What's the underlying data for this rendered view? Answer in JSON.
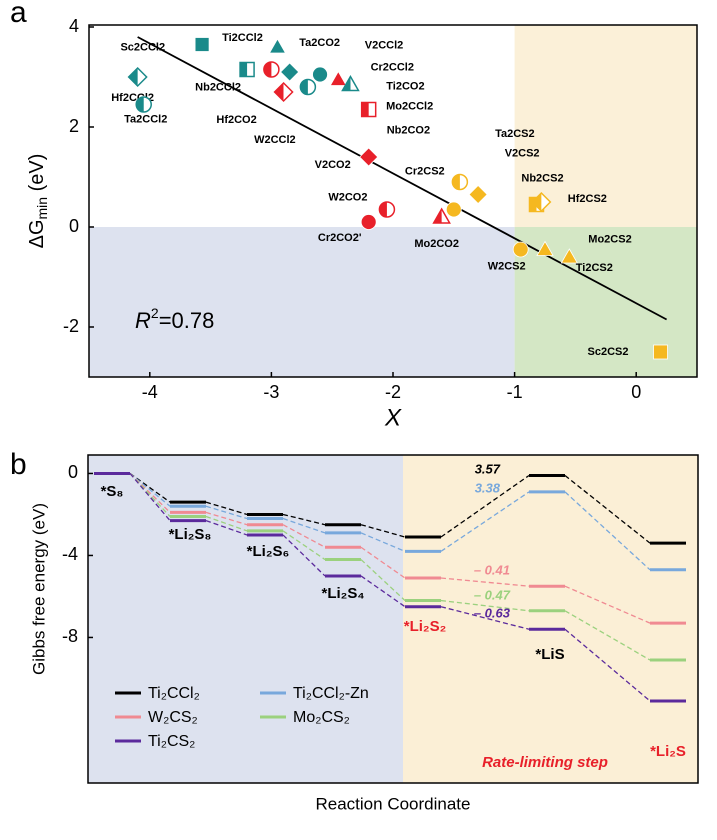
{
  "chart_data": [
    {
      "type": "scatter",
      "panel_label": "a",
      "xlabel": "X",
      "ylabel_parts": [
        "ΔG",
        "min",
        " (eV)"
      ],
      "xlim": [
        -4.5,
        0.5
      ],
      "ylim": [
        -3,
        4.04
      ],
      "xticks": [
        -4,
        -3,
        -2,
        -1,
        0
      ],
      "yticks": [
        -2,
        0,
        2,
        4
      ],
      "regions": [
        {
          "xlim": [
            -4.5,
            -1
          ],
          "ylim": [
            -3,
            0
          ],
          "color": "#dde2ef"
        },
        {
          "xlim": [
            -1,
            0.5
          ],
          "ylim": [
            -3,
            0
          ],
          "color": "#d4e7c5"
        },
        {
          "xlim": [
            -1,
            0.5
          ],
          "ylim": [
            0,
            4.04
          ],
          "color": "#fbf0d8"
        }
      ],
      "fit_line": {
        "x": [
          -4.1,
          0.25
        ],
        "y": [
          3.8,
          -1.85
        ],
        "color": "#000000"
      },
      "annotation_parts": [
        "R",
        "2",
        "=0.78"
      ],
      "points": [
        {
          "label": "Sc2CCl2",
          "x": -3.57,
          "y": 3.65,
          "marker": "square",
          "fill": "full",
          "color": "#1a8a8a"
        },
        {
          "label": "Ti2CCl2",
          "x": -2.95,
          "y": 3.6,
          "marker": "triangle",
          "fill": "full",
          "color": "#1a8a8a"
        },
        {
          "label": "Ta2CO2",
          "x": -2.85,
          "y": 3.1,
          "marker": "diamond",
          "fill": "full",
          "color": "#1a8a8a"
        },
        {
          "label": "Hf2CCl2",
          "x": -4.1,
          "y": 3.0,
          "marker": "diamond",
          "fill": "half",
          "color": "#1a8a8a"
        },
        {
          "label": "Ta2CCl2",
          "x": -4.05,
          "y": 2.45,
          "marker": "circle",
          "fill": "half",
          "color": "#1a8a8a"
        },
        {
          "label": "Nb2CCl2",
          "x": -3.2,
          "y": 3.15,
          "marker": "square",
          "fill": "half",
          "color": "#1a8a8a"
        },
        {
          "label": "V2CCl2",
          "x": -2.6,
          "y": 3.05,
          "marker": "circle",
          "fill": "full",
          "color": "#1a8a8a"
        },
        {
          "label": "Cr2CCl2",
          "x": -2.45,
          "y": 2.95,
          "marker": "triangle",
          "fill": "full",
          "color": "#e8202a"
        },
        {
          "label": "Ti2CO2",
          "x": -2.35,
          "y": 2.85,
          "marker": "triangle",
          "fill": "half",
          "color": "#1a8a8a"
        },
        {
          "label": "Mo2CCl2",
          "x": -2.2,
          "y": 2.35,
          "marker": "square",
          "fill": "half",
          "color": "#e8202a"
        },
        {
          "label": "Nb2CO2",
          "x": -3.0,
          "y": 3.15,
          "marker": "circle",
          "fill": "half",
          "color": "#e8202a"
        },
        {
          "label": "Hf2CO2",
          "x": -2.9,
          "y": 2.7,
          "marker": "diamond",
          "fill": "half",
          "color": "#e8202a"
        },
        {
          "label": "W2CCl2",
          "x": -2.7,
          "y": 2.8,
          "marker": "circle",
          "fill": "half",
          "color": "#1a8a8a"
        },
        {
          "label": "V2CO2",
          "x": -2.2,
          "y": 1.4,
          "marker": "diamond",
          "fill": "full",
          "color": "#e8202a"
        },
        {
          "label": "W2CO2",
          "x": -2.05,
          "y": 0.35,
          "marker": "circle",
          "fill": "half",
          "color": "#e8202a"
        },
        {
          "label": "Cr2CO2'",
          "x": -2.2,
          "y": 0.1,
          "marker": "circle",
          "fill": "full",
          "color": "#e8202a"
        },
        {
          "label": "Mo2CO2",
          "x": -1.6,
          "y": 0.2,
          "marker": "triangle",
          "fill": "half",
          "color": "#e8202a"
        },
        {
          "label": "Cr2CS2",
          "x": -1.5,
          "y": 0.35,
          "marker": "circle",
          "fill": "full",
          "color": "#f5b820"
        },
        {
          "label": "Ta2CS2",
          "x": -1.45,
          "y": 0.9,
          "marker": "circle",
          "fill": "half",
          "color": "#f5b820"
        },
        {
          "label": "V2CS2",
          "x": -1.3,
          "y": 0.65,
          "marker": "diamond",
          "fill": "full",
          "color": "#f5b820"
        },
        {
          "label": "Nb2CS2",
          "x": -0.82,
          "y": 0.45,
          "marker": "square",
          "fill": "half",
          "color": "#f5b820"
        },
        {
          "label": "Hf2CS2",
          "x": -0.78,
          "y": 0.5,
          "marker": "diamond",
          "fill": "half",
          "color": "#f5b820"
        },
        {
          "label": "W2CS2",
          "x": -0.95,
          "y": -0.45,
          "marker": "circle",
          "fill": "full",
          "color": "#f5b820"
        },
        {
          "label": "Mo2CS2",
          "x": -0.75,
          "y": -0.45,
          "marker": "triangle",
          "fill": "full",
          "color": "#f5b820"
        },
        {
          "label": "Ti2CS2",
          "x": -0.55,
          "y": -0.6,
          "marker": "triangle",
          "fill": "full",
          "color": "#f5b820"
        },
        {
          "label": "Sc2CS2",
          "x": 0.2,
          "y": -2.5,
          "marker": "square",
          "fill": "full",
          "color": "#f5b820"
        }
      ]
    },
    {
      "type": "energy_levels",
      "panel_label": "b",
      "ylabel": "Gibbs free energy (eV)",
      "xlabel": "Reaction Coordinate",
      "ylim": [
        -15.1,
        0.9
      ],
      "yticks": [
        0,
        -4,
        -8
      ],
      "backgrounds": [
        "#dde2ef",
        "#fbefd6"
      ],
      "categories": [
        "*S₈",
        "*Li₂S₈",
        "*Li₂S₆",
        "*Li₂S₄",
        "*Li₂S₂",
        "*LiS",
        "*Li₂S"
      ],
      "category_colors": [
        "#000000",
        "#000000",
        "#000000",
        "#000000",
        "#e8202a",
        "#000000",
        "#e8202a"
      ],
      "series": [
        {
          "name": "Ti₂CCl₂",
          "color": "#000000",
          "values": [
            0,
            -1.4,
            -2.0,
            -2.5,
            -3.1,
            -0.1,
            -3.4
          ]
        },
        {
          "name": "Ti₂CCl₂-Zn",
          "color": "#78a8dc",
          "values": [
            0,
            -1.6,
            -2.2,
            -2.9,
            -3.8,
            -0.9,
            -4.7
          ]
        },
        {
          "name": "W₂CS₂",
          "color": "#f08a92",
          "values": [
            0,
            -1.9,
            -2.5,
            -3.6,
            -5.1,
            -5.5,
            -7.3
          ]
        },
        {
          "name": "Mo₂CS₂",
          "color": "#9bd17e",
          "values": [
            0,
            -2.1,
            -2.8,
            -4.2,
            -6.2,
            -6.7,
            -9.1
          ]
        },
        {
          "name": "Ti₂CS₂",
          "color": "#5b2a9c",
          "values": [
            0,
            -2.3,
            -3.0,
            -5.0,
            -6.5,
            -7.6,
            -11.1
          ]
        }
      ],
      "annotations": [
        {
          "value": 3.57,
          "label": "3.57",
          "color": "#000000"
        },
        {
          "value": 3.38,
          "label": "3.38",
          "color": "#78a8dc"
        },
        {
          "value": -0.41,
          "label": "– 0.41",
          "color": "#f08a92"
        },
        {
          "value": -0.47,
          "label": "– 0.47",
          "color": "#9bd17e"
        },
        {
          "value": -0.63,
          "label": "– 0.63",
          "color": "#5b2a9c"
        }
      ],
      "region_label": "Rate-limiting step"
    }
  ]
}
